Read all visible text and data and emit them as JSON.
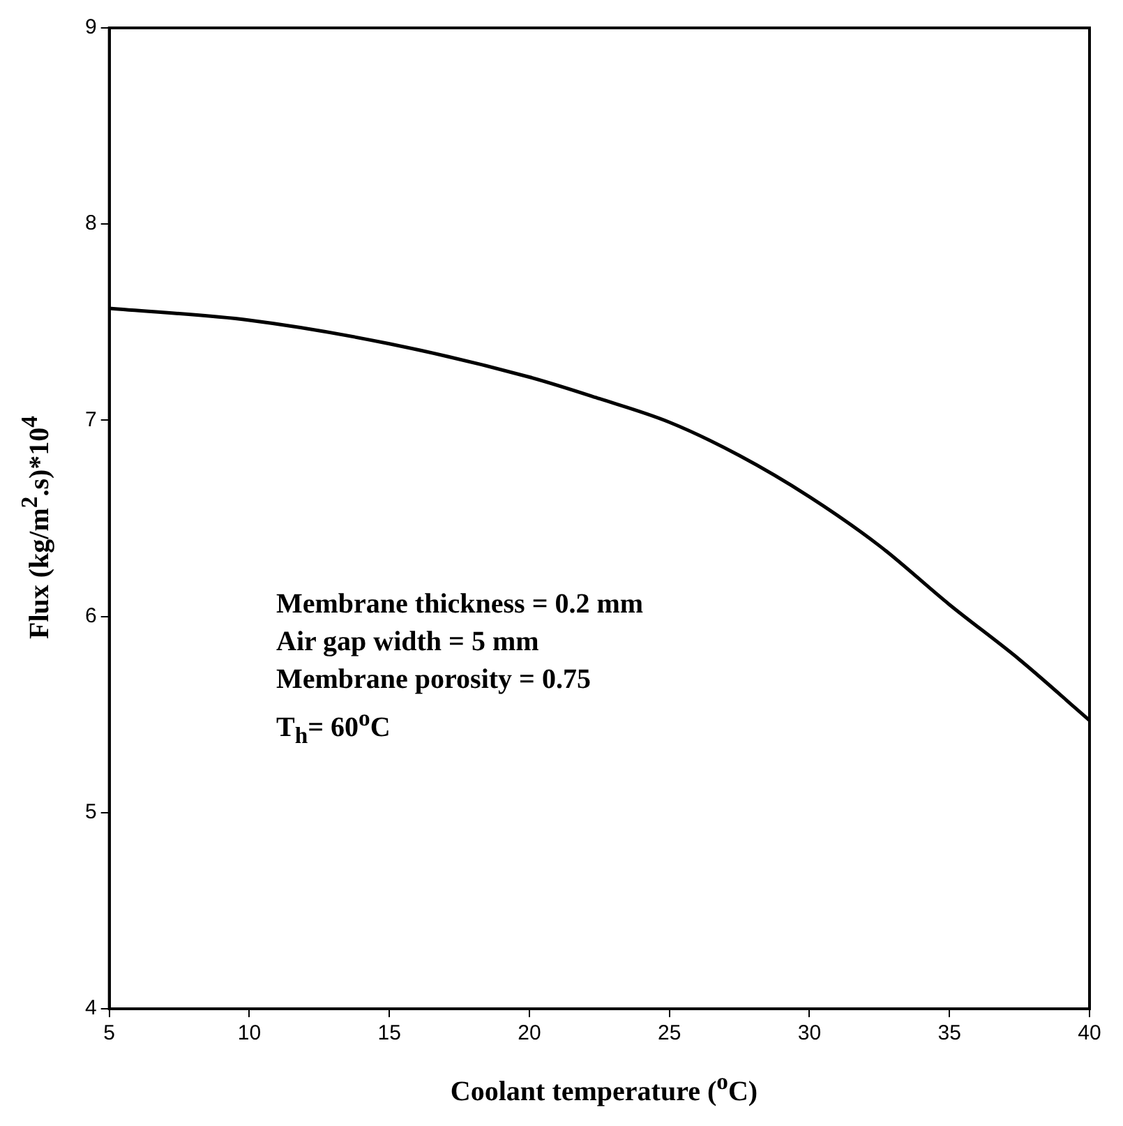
{
  "chart_data": {
    "type": "line",
    "xlabel": "Coolant temperature ($^{o}$C)",
    "ylabel": "Flux (kg/m$^{2}$.s)*10$^{4}$",
    "xlim": [
      5,
      40
    ],
    "xticks": [
      5,
      10,
      15,
      20,
      25,
      30,
      35,
      40
    ],
    "ylim": [
      4,
      9
    ],
    "yticks": [
      4,
      5,
      6,
      7,
      8,
      9
    ],
    "grid": false,
    "legend": false,
    "series": [
      {
        "color": "#000000",
        "x": [
          5,
          10,
          15,
          20,
          22.5,
          25,
          27.5,
          30,
          32.5,
          35,
          37.5,
          40
        ],
        "values": [
          7.57,
          7.51,
          7.39,
          7.22,
          7.11,
          6.99,
          6.82,
          6.61,
          6.36,
          6.06,
          5.78,
          5.47
        ]
      }
    ],
    "annotations": [
      "Membrane thickness = 0.2 mm",
      "Air gap width = 5 mm",
      "Membrane porosity = 0.75",
      "T$_{h}$= 60$^{o}$C"
    ]
  }
}
